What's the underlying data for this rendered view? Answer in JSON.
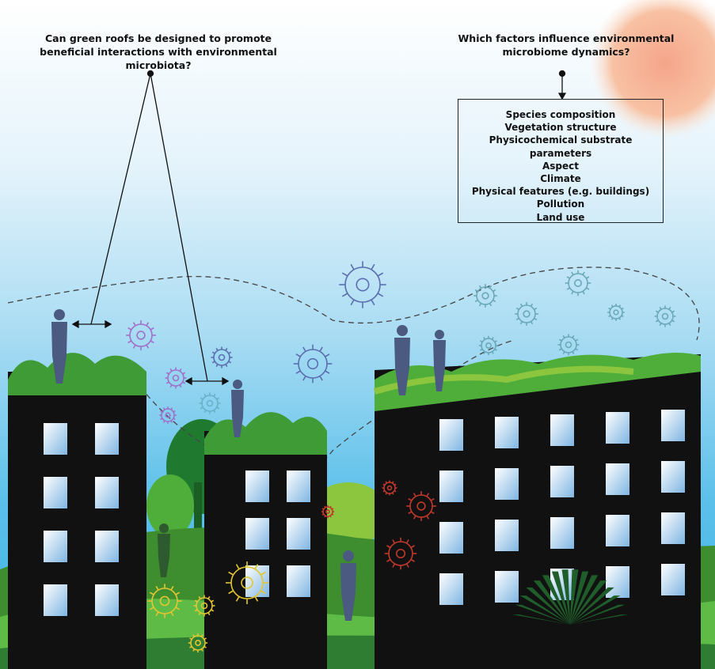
{
  "questions": [
    "Can green roofs be designed to promote beneficial interactions with environmental microbiota?",
    "Which factors influence environmental microbiome dynamics?"
  ],
  "factors": {
    "items": [
      "Species composition",
      "Vegetation structure",
      "Physicochemical substrate parameters",
      "Aspect",
      "Climate",
      "Physical features (e.g. buildings)",
      "Pollution",
      "Land use"
    ]
  }
}
